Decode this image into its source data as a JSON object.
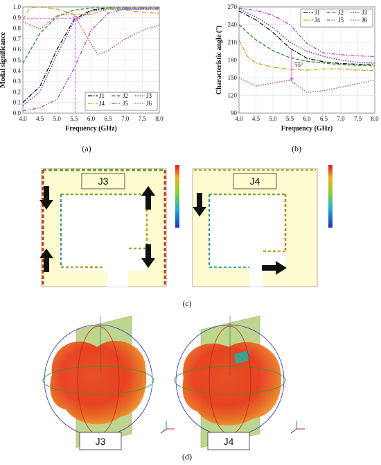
{
  "colors": {
    "J1": "#111111",
    "J2": "#2e8b2e",
    "J3": "#3a3ad8",
    "J4": "#d4a017",
    "J5": "#b23ad8",
    "J6": "#c0583a",
    "marker": "#e060e0",
    "plate": "#fffbd0",
    "field_high": "#d03020",
    "field_low": "#2040c0"
  },
  "chart_data": [
    {
      "id": "a",
      "type": "line",
      "caption": "(a)",
      "xlabel": "Frequency (GHz)",
      "ylabel": "Modal significance",
      "xlim": [
        4.0,
        8.0
      ],
      "ylim": [
        0.0,
        1.0
      ],
      "xticks": [
        "4.0",
        "4.5",
        "5.0",
        "5.5",
        "6.0",
        "6.5",
        "7.0",
        "7.5",
        "8.0"
      ],
      "yticks": [
        "0.0",
        "0.1",
        "0.2",
        "0.3",
        "0.4",
        "0.5",
        "0.6",
        "0.7",
        "0.8",
        "0.9",
        "1.0"
      ],
      "grid": true,
      "legend_position": "bottom-right",
      "marker_x": 5.55,
      "marker_y": 0.89,
      "series": [
        {
          "name": "J1",
          "style": "dashdot",
          "x": [
            4.0,
            4.5,
            5.0,
            5.5,
            6.0,
            6.5,
            7.0,
            7.5,
            8.0
          ],
          "y": [
            0.1,
            0.25,
            0.6,
            0.88,
            0.97,
            0.99,
            0.99,
            0.99,
            0.99
          ]
        },
        {
          "name": "J2",
          "style": "dash",
          "x": [
            4.0,
            4.5,
            5.0,
            5.5,
            6.0,
            6.5,
            7.0,
            7.5,
            8.0
          ],
          "y": [
            0.47,
            0.75,
            0.91,
            0.97,
            0.99,
            0.99,
            0.99,
            0.99,
            0.99
          ]
        },
        {
          "name": "J3",
          "style": "dot",
          "x": [
            4.0,
            4.5,
            5.0,
            5.5,
            6.0,
            6.5,
            7.0,
            7.5,
            8.0
          ],
          "y": [
            0.07,
            0.2,
            0.55,
            0.86,
            0.96,
            0.98,
            0.98,
            0.98,
            0.98
          ]
        },
        {
          "name": "J4",
          "style": "dashdot",
          "x": [
            4.0,
            4.2,
            4.5,
            5.0,
            5.5,
            6.0,
            6.5,
            7.0,
            7.5,
            8.0
          ],
          "y": [
            0.88,
            0.99,
            1.0,
            0.98,
            0.93,
            0.93,
            0.98,
            0.97,
            0.95,
            0.94
          ]
        },
        {
          "name": "J5",
          "style": "dashdotdot",
          "x": [
            4.0,
            4.5,
            5.0,
            5.5,
            6.0,
            6.5,
            7.0,
            7.5,
            8.0
          ],
          "y": [
            0.02,
            0.05,
            0.13,
            0.42,
            0.78,
            0.94,
            0.98,
            0.98,
            0.98
          ]
        },
        {
          "name": "J6",
          "style": "dot",
          "x": [
            4.0,
            4.5,
            5.0,
            5.5,
            6.0,
            6.2,
            6.5,
            7.0,
            7.5,
            8.0
          ],
          "y": [
            0.86,
            0.79,
            0.92,
            0.93,
            0.65,
            0.55,
            0.59,
            0.7,
            0.78,
            0.83
          ]
        }
      ]
    },
    {
      "id": "b",
      "type": "line",
      "caption": "(b)",
      "xlabel": "Frequency (GHz)",
      "ylabel": "Characteristic angle (°)",
      "xlim": [
        4.0,
        8.0
      ],
      "ylim": [
        90,
        270
      ],
      "xticks": [
        "4.0",
        "4.5",
        "5.0",
        "5.5",
        "6.0",
        "6.5",
        "7.0",
        "7.5",
        "8.0"
      ],
      "yticks": [
        "90",
        "120",
        "150",
        "180",
        "210",
        "240",
        "270"
      ],
      "grid": true,
      "legend_position": "top-right",
      "annotation": "55°",
      "annotation_x": 5.55,
      "annotation_y_top": 199,
      "annotation_y_bottom": 144,
      "series": [
        {
          "name": "J1",
          "style": "dashdot",
          "x": [
            4.0,
            4.5,
            5.0,
            5.5,
            6.0,
            6.5,
            7.0,
            7.5,
            8.0
          ],
          "y": [
            263,
            248,
            227,
            200,
            183,
            177,
            174,
            173,
            173
          ]
        },
        {
          "name": "J2",
          "style": "dash",
          "x": [
            4.0,
            4.5,
            5.0,
            5.5,
            6.0,
            6.5,
            7.0,
            7.5,
            8.0
          ],
          "y": [
            240,
            214,
            196,
            184,
            178,
            175,
            172,
            171,
            170
          ]
        },
        {
          "name": "J3",
          "style": "dot",
          "x": [
            4.0,
            4.5,
            5.0,
            5.5,
            6.0,
            6.5,
            7.0,
            7.5,
            8.0
          ],
          "y": [
            267,
            253,
            235,
            210,
            195,
            186,
            180,
            176,
            175
          ]
        },
        {
          "name": "J4",
          "style": "dashdot",
          "x": [
            4.0,
            4.25,
            4.5,
            5.0,
            5.5,
            6.0,
            6.5,
            7.0,
            7.5,
            8.0
          ],
          "y": [
            214,
            186,
            175,
            168,
            164,
            163,
            165,
            165,
            163,
            162
          ]
        },
        {
          "name": "J5",
          "style": "dashdotdot",
          "x": [
            4.0,
            4.5,
            5.0,
            5.5,
            6.0,
            6.5,
            7.0,
            7.5,
            8.0
          ],
          "y": [
            268,
            264,
            256,
            240,
            208,
            192,
            189,
            187,
            186
          ]
        },
        {
          "name": "J6",
          "style": "dot",
          "x": [
            4.0,
            4.5,
            5.0,
            5.5,
            6.0,
            6.5,
            7.0,
            7.5,
            8.0
          ],
          "y": [
            150,
            136,
            141,
            146,
            125,
            128,
            134,
            140,
            146
          ]
        }
      ]
    }
  ],
  "figure_c": {
    "caption": "(c)",
    "panels": [
      {
        "label": "J3",
        "arrows": [
          "down",
          "up",
          "up",
          "down"
        ]
      },
      {
        "label": "J4",
        "arrows": [
          "down",
          "right"
        ]
      }
    ]
  },
  "figure_d": {
    "caption": "(d)",
    "panels": [
      {
        "label": "J3"
      },
      {
        "label": "J4"
      }
    ]
  }
}
